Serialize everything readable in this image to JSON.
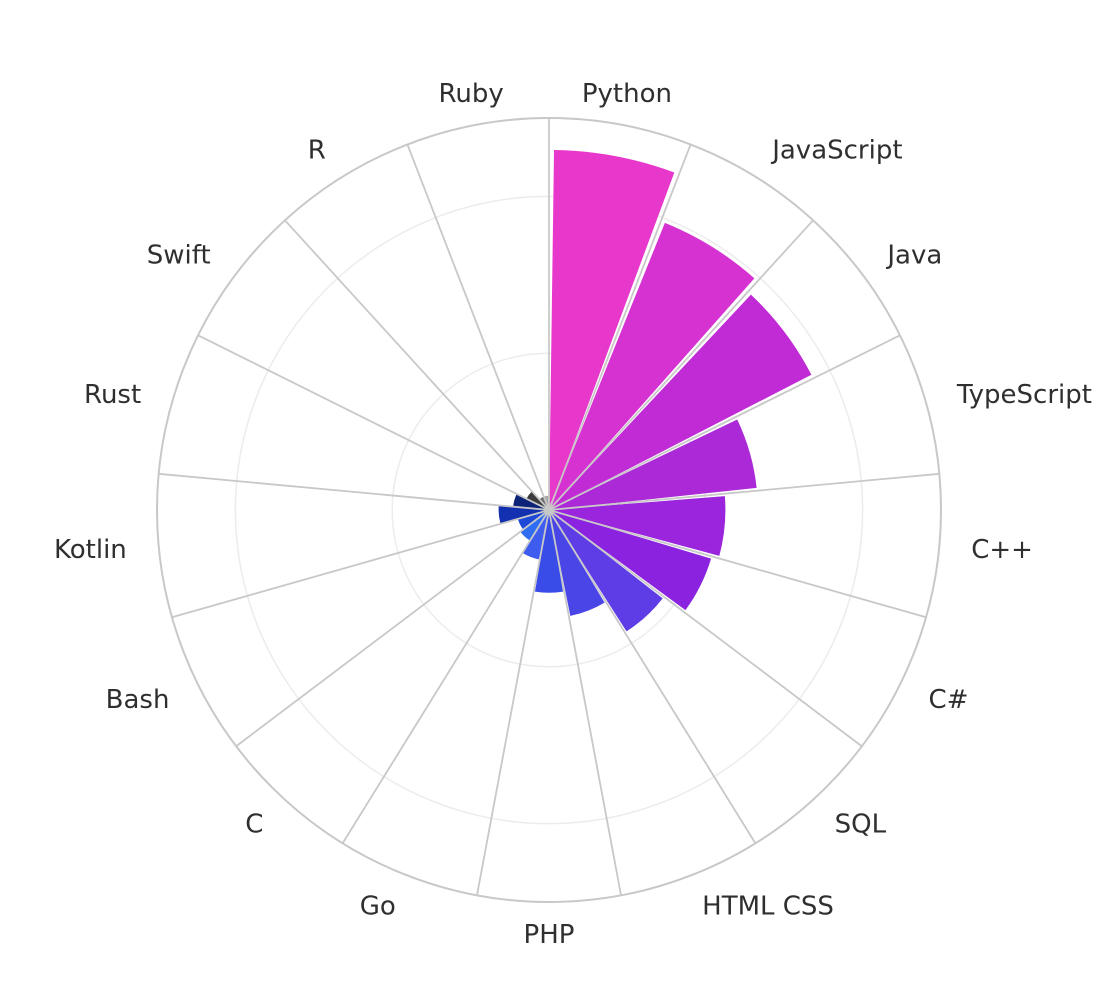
{
  "chart_data": {
    "type": "polar-bar",
    "title": "",
    "categories": [
      "Python",
      "JavaScript",
      "Java",
      "TypeScript",
      "C++",
      "C#",
      "SQL",
      "HTML CSS",
      "PHP",
      "Go",
      "C",
      "Bash",
      "Kotlin",
      "Rust",
      "Swift",
      "R",
      "Ruby"
    ],
    "values": [
      100,
      86,
      82,
      58,
      49,
      47,
      40,
      30,
      23,
      14,
      10,
      9,
      14,
      10,
      7,
      4,
      4
    ],
    "rlim": [
      0,
      100
    ],
    "grid": true,
    "legend": "none",
    "colors": [
      "#e838cc",
      "#d632d2",
      "#c02bd6",
      "#ac29d8",
      "#9a25dc",
      "#8a22e0",
      "#5f3de6",
      "#4a45e6",
      "#3a4ce8",
      "#3e5cf0",
      "#2f6ef2",
      "#1d48d8",
      "#1230b0",
      "#0c2378",
      "#3c3c3c",
      "#707070",
      "#a8a8a8"
    ]
  }
}
